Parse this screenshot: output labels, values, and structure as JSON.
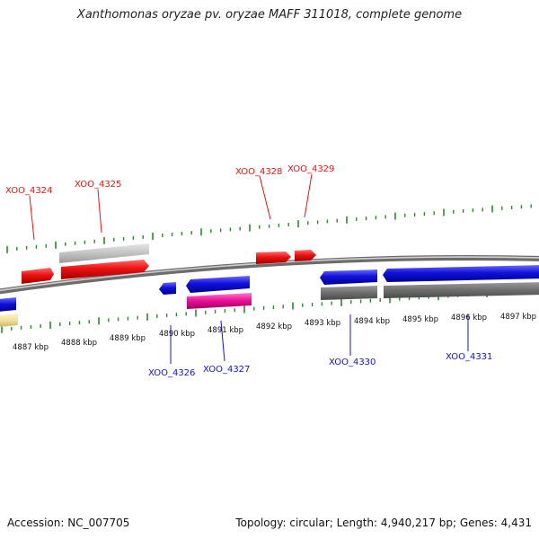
{
  "title": "Xanthomonas oryzae pv. oryzae MAFF 311018, complete genome",
  "footer": {
    "accession": "Accession: NC_007705",
    "summary": "Topology: circular; Length: 4,940,217 bp; Genes: 4,431"
  },
  "colors": {
    "forward_gene": "#ee1111",
    "reverse_gene": "#1111dd",
    "rrna_like": "#ee1199",
    "pseudo": "#c0c0c0",
    "other": "#f0e29a",
    "ticks": "#2a8a2a",
    "backbone": "#808080"
  },
  "ticks": {
    "labels": [
      "4887 kbp",
      "4888 kbp",
      "4889 kbp",
      "4890 kbp",
      "4891 kbp",
      "4892 kbp",
      "4893 kbp",
      "4894 kbp",
      "4895 kbp",
      "4896 kbp",
      "4897 kbp"
    ]
  },
  "genes": {
    "forward_labels": [
      "XOO_4324",
      "XOO_4325",
      "XOO_4328",
      "XOO_4329"
    ],
    "reverse_labels": [
      "XOO_4326",
      "XOO_4327",
      "XOO_4330",
      "XOO_4331"
    ]
  }
}
